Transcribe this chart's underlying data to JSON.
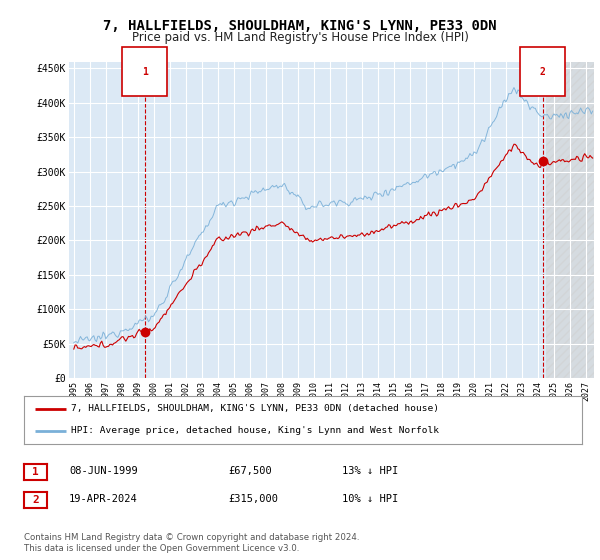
{
  "title": "7, HALLFIELDS, SHOULDHAM, KING'S LYNN, PE33 0DN",
  "subtitle": "Price paid vs. HM Land Registry's House Price Index (HPI)",
  "title_fontsize": 10,
  "subtitle_fontsize": 8.5,
  "background_color": "#ffffff",
  "plot_bg_color": "#dce9f5",
  "grid_color": "#ffffff",
  "hpi_color": "#7ab0d8",
  "price_color": "#cc0000",
  "ylim": [
    0,
    460000
  ],
  "yticks": [
    0,
    50000,
    100000,
    150000,
    200000,
    250000,
    300000,
    350000,
    400000,
    450000
  ],
  "ytick_labels": [
    "£0",
    "£50K",
    "£100K",
    "£150K",
    "£200K",
    "£250K",
    "£300K",
    "£350K",
    "£400K",
    "£450K"
  ],
  "xlim_start": 1994.7,
  "xlim_end": 2027.5,
  "xticks": [
    1995,
    1996,
    1997,
    1998,
    1999,
    2000,
    2001,
    2002,
    2003,
    2004,
    2005,
    2006,
    2007,
    2008,
    2009,
    2010,
    2011,
    2012,
    2013,
    2014,
    2015,
    2016,
    2017,
    2018,
    2019,
    2020,
    2021,
    2022,
    2023,
    2024,
    2025,
    2026,
    2027
  ],
  "legend_label_red": "7, HALLFIELDS, SHOULDHAM, KING'S LYNN, PE33 0DN (detached house)",
  "legend_label_blue": "HPI: Average price, detached house, King's Lynn and West Norfolk",
  "marker1_x": 1999.44,
  "marker1_y": 67500,
  "marker2_x": 2024.29,
  "marker2_y": 315000,
  "footnote": "Contains HM Land Registry data © Crown copyright and database right 2024.\nThis data is licensed under the Open Government Licence v3.0.",
  "future_start": 2024.5,
  "hatch_color": "#c8c8c8"
}
